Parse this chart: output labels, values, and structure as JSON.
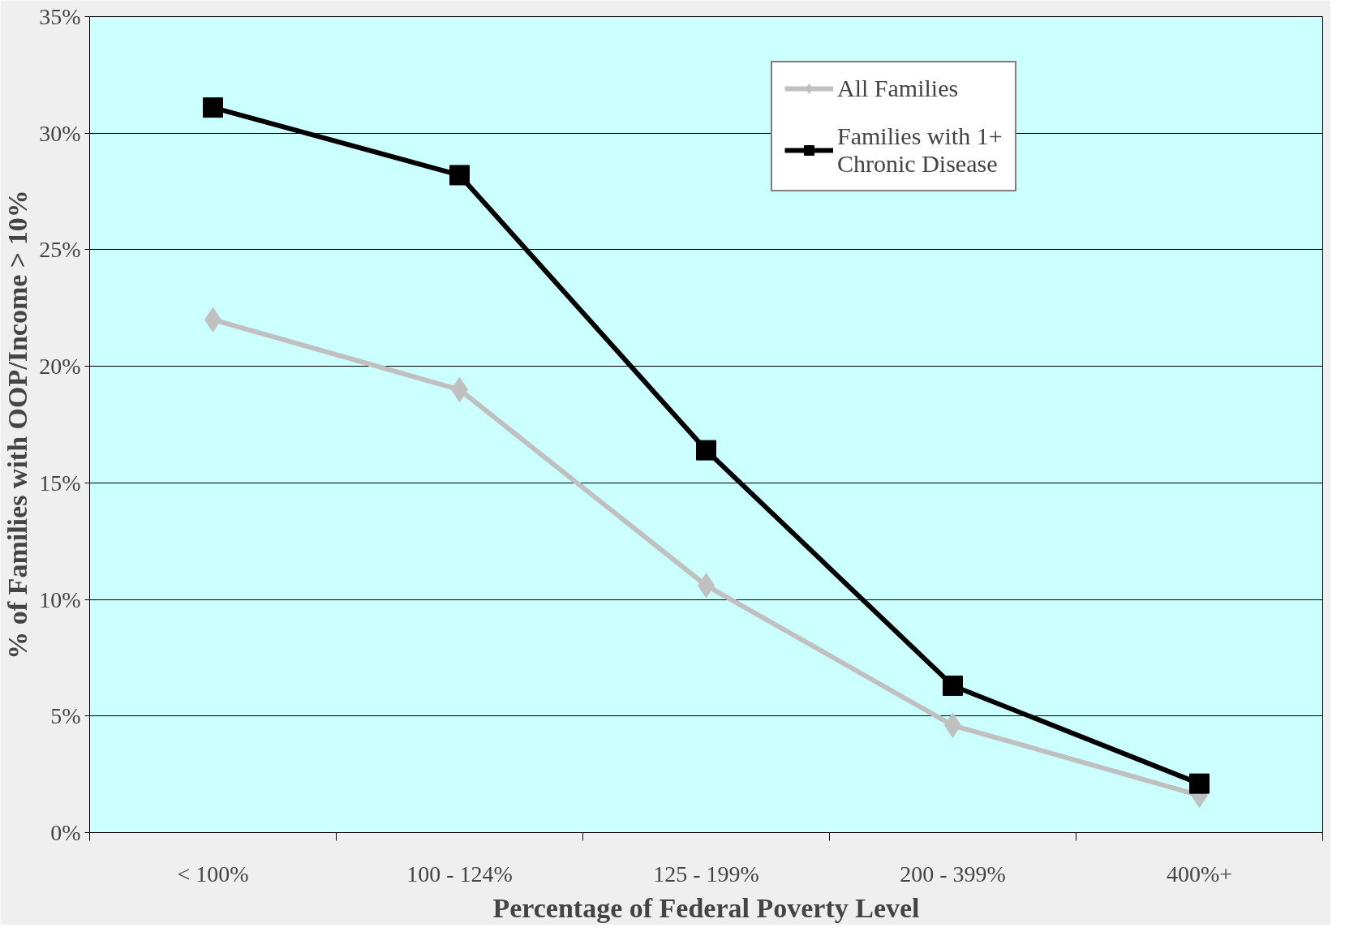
{
  "chart_data": {
    "type": "line",
    "xlabel": "Percentage of Federal Poverty Level",
    "ylabel": "% of Families with OOP/Income > 10%",
    "categories": [
      "< 100%",
      "100 - 124%",
      "125 - 199%",
      "200 - 399%",
      "400%+"
    ],
    "series": [
      {
        "name": "All Families",
        "color": "#c0c0c0",
        "marker": "diamond",
        "values": [
          22.0,
          19.0,
          10.6,
          4.6,
          1.6
        ]
      },
      {
        "name": "Families with 1+\nChronic Disease",
        "color": "#000000",
        "marker": "square",
        "values": [
          31.1,
          28.2,
          16.4,
          6.3,
          2.1
        ]
      }
    ],
    "ylim": [
      0,
      35
    ],
    "yticks": [
      {
        "value": 0,
        "label": "0%"
      },
      {
        "value": 5,
        "label": "5%"
      },
      {
        "value": 10,
        "label": "10%"
      },
      {
        "value": 15,
        "label": "15%"
      },
      {
        "value": 20,
        "label": "20%"
      },
      {
        "value": 25,
        "label": "25%"
      },
      {
        "value": 30,
        "label": "30%"
      },
      {
        "value": 35,
        "label": "35%"
      }
    ],
    "grid": "y",
    "legend": "top right",
    "line_style": "solid"
  }
}
